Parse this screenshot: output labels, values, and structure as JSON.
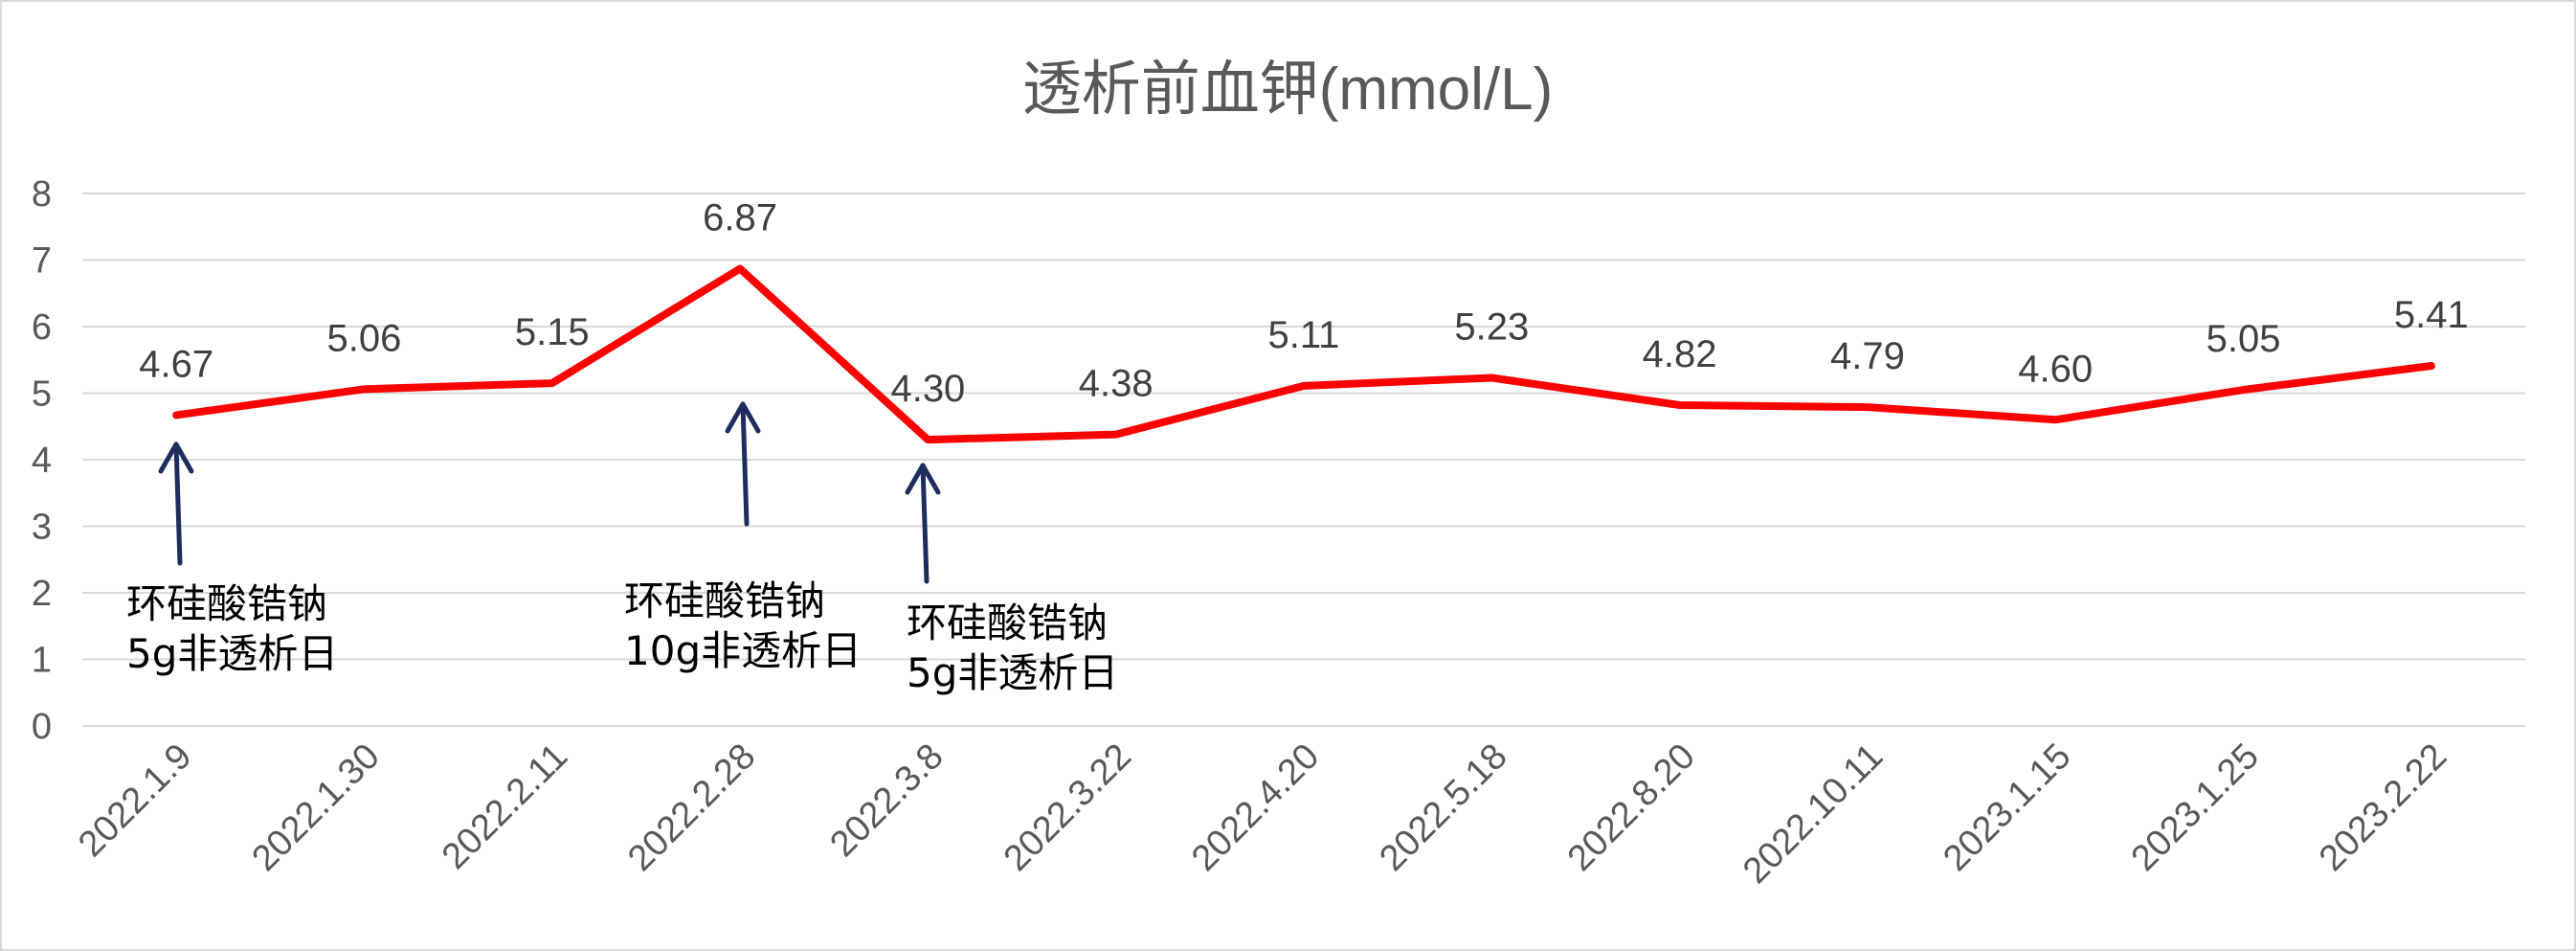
{
  "chart_data": {
    "type": "line",
    "title": "透析前血钾(mmol/L)",
    "xlabel": "",
    "ylabel": "",
    "categories": [
      "2022.1.9",
      "2022.1.30",
      "2022.2.11",
      "2022.2.28",
      "2022.3.8",
      "2022.3.22",
      "2022.4.20",
      "2022.5.18",
      "2022.8.20",
      "2022.10.11",
      "2023.1.15",
      "2023.1.25",
      "2023.2.22"
    ],
    "series": [
      {
        "values": [
          4.67,
          5.06,
          5.15,
          6.87,
          4.3,
          4.38,
          5.11,
          5.23,
          4.82,
          4.79,
          4.6,
          5.05,
          5.41
        ],
        "labels": [
          "4.67",
          "5.06",
          "5.15",
          "6.87",
          "4.30",
          "4.38",
          "5.11",
          "5.23",
          "4.82",
          "4.79",
          "4.60",
          "5.05",
          "5.41"
        ],
        "color": "#ff0000"
      }
    ],
    "ylim": [
      0,
      8
    ],
    "yticks": [
      "0",
      "1",
      "2",
      "3",
      "4",
      "5",
      "6",
      "7",
      "8"
    ],
    "grid": true,
    "legend": "none",
    "annotations": [
      {
        "category_index": 0,
        "line1": "环硅酸锆钠",
        "line2": "5g非透析日"
      },
      {
        "category_index": 3,
        "line1": "环硅酸锆钠",
        "line2": "10g非透析日"
      },
      {
        "category_index": 4,
        "line1": "环硅酸锆钠",
        "line2": "5g非透析日"
      }
    ],
    "colors": {
      "line": "#ff0000",
      "arrow": "#1f2d5e",
      "grid": "#d9d9d9",
      "text": "#595959"
    }
  }
}
